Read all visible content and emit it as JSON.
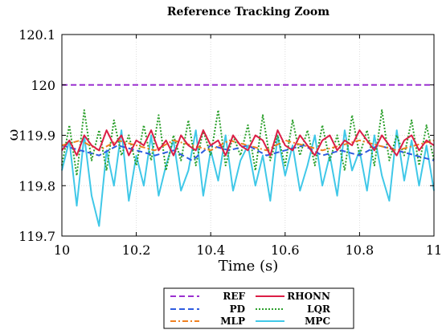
{
  "chart_data": {
    "type": "line",
    "title": "Reference Tracking Zoom",
    "xlabel": "Time (s)",
    "ylabel": "ω",
    "xlim": [
      10,
      11
    ],
    "ylim": [
      119.7,
      120.1
    ],
    "xticks": [
      10,
      10.2,
      10.4,
      10.6,
      10.8,
      11
    ],
    "xtick_labels": [
      "10",
      "10.2",
      "10.4",
      "10.6",
      "10.8",
      "11"
    ],
    "yticks": [
      119.7,
      119.8,
      119.9,
      120,
      120.1
    ],
    "ytick_labels": [
      "119.7",
      "119.8",
      "119.9",
      "120",
      "120.1"
    ],
    "grid": true,
    "legend_position": "below plot",
    "series": [
      {
        "name": "REF",
        "color": "#9b30d0",
        "style": "dashed",
        "x": [
          10,
          11
        ],
        "y": [
          120.0,
          120.0
        ]
      },
      {
        "name": "PD",
        "color": "#2e5ce0",
        "style": "dashed",
        "x": [
          10,
          10.05,
          10.1,
          10.15,
          10.2,
          10.25,
          10.3,
          10.35,
          10.4,
          10.45,
          10.5,
          10.55,
          10.6,
          10.65,
          10.7,
          10.75,
          10.8,
          10.85,
          10.9,
          10.95,
          11
        ],
        "y": [
          119.88,
          119.87,
          119.86,
          119.88,
          119.87,
          119.86,
          119.87,
          119.85,
          119.88,
          119.87,
          119.88,
          119.86,
          119.87,
          119.88,
          119.86,
          119.87,
          119.86,
          119.88,
          119.87,
          119.86,
          119.85
        ]
      },
      {
        "name": "MLP",
        "color": "#f08020",
        "style": "dashdot",
        "x": [
          10,
          10.05,
          10.1,
          10.15,
          10.2,
          10.25,
          10.3,
          10.35,
          10.4,
          10.45,
          10.5,
          10.55,
          10.6,
          10.65,
          10.7,
          10.75,
          10.8,
          10.85,
          10.9,
          10.95,
          11
        ],
        "y": [
          119.88,
          119.89,
          119.87,
          119.89,
          119.88,
          119.87,
          119.89,
          119.88,
          119.87,
          119.89,
          119.88,
          119.87,
          119.89,
          119.88,
          119.87,
          119.88,
          119.89,
          119.88,
          119.87,
          119.88,
          119.89
        ]
      },
      {
        "name": "RHONN",
        "color": "#dc1e46",
        "style": "solid",
        "x": [
          10,
          10.02,
          10.04,
          10.06,
          10.08,
          10.1,
          10.12,
          10.14,
          10.16,
          10.18,
          10.2,
          10.22,
          10.24,
          10.26,
          10.28,
          10.3,
          10.32,
          10.34,
          10.36,
          10.38,
          10.4,
          10.42,
          10.44,
          10.46,
          10.48,
          10.5,
          10.52,
          10.54,
          10.56,
          10.58,
          10.6,
          10.62,
          10.64,
          10.66,
          10.68,
          10.7,
          10.72,
          10.74,
          10.76,
          10.78,
          10.8,
          10.82,
          10.84,
          10.86,
          10.88,
          10.9,
          10.92,
          10.94,
          10.96,
          10.98,
          11
        ],
        "y": [
          119.87,
          119.89,
          119.86,
          119.9,
          119.88,
          119.87,
          119.91,
          119.88,
          119.9,
          119.86,
          119.89,
          119.88,
          119.91,
          119.87,
          119.89,
          119.86,
          119.9,
          119.88,
          119.87,
          119.91,
          119.88,
          119.89,
          119.86,
          119.9,
          119.88,
          119.87,
          119.9,
          119.89,
          119.86,
          119.91,
          119.88,
          119.87,
          119.9,
          119.88,
          119.86,
          119.89,
          119.9,
          119.87,
          119.89,
          119.88,
          119.91,
          119.89,
          119.87,
          119.9,
          119.88,
          119.86,
          119.89,
          119.9,
          119.87,
          119.89,
          119.88
        ]
      },
      {
        "name": "LQR",
        "color": "#2ca02c",
        "style": "dotted",
        "x": [
          10,
          10.02,
          10.04,
          10.06,
          10.08,
          10.1,
          10.12,
          10.14,
          10.16,
          10.18,
          10.2,
          10.22,
          10.24,
          10.26,
          10.28,
          10.3,
          10.32,
          10.34,
          10.36,
          10.38,
          10.4,
          10.42,
          10.44,
          10.46,
          10.48,
          10.5,
          10.52,
          10.54,
          10.56,
          10.58,
          10.6,
          10.62,
          10.64,
          10.66,
          10.68,
          10.7,
          10.72,
          10.74,
          10.76,
          10.78,
          10.8,
          10.82,
          10.84,
          10.86,
          10.88,
          10.9,
          10.92,
          10.94,
          10.96,
          10.98,
          11
        ],
        "y": [
          119.84,
          119.92,
          119.82,
          119.95,
          119.85,
          119.91,
          119.83,
          119.93,
          119.86,
          119.9,
          119.84,
          119.92,
          119.85,
          119.94,
          119.83,
          119.9,
          119.85,
          119.93,
          119.84,
          119.91,
          119.86,
          119.95,
          119.84,
          119.9,
          119.86,
          119.92,
          119.83,
          119.94,
          119.85,
          119.9,
          119.84,
          119.93,
          119.86,
          119.91,
          119.84,
          119.92,
          119.85,
          119.9,
          119.83,
          119.94,
          119.86,
          119.91,
          119.84,
          119.95,
          119.85,
          119.9,
          119.86,
          119.93,
          119.84,
          119.92,
          119.85
        ]
      },
      {
        "name": "MPC",
        "color": "#40c8e8",
        "style": "solid",
        "x": [
          10,
          10.02,
          10.04,
          10.06,
          10.08,
          10.1,
          10.12,
          10.14,
          10.16,
          10.18,
          10.2,
          10.22,
          10.24,
          10.26,
          10.28,
          10.3,
          10.32,
          10.34,
          10.36,
          10.38,
          10.4,
          10.42,
          10.44,
          10.46,
          10.48,
          10.5,
          10.52,
          10.54,
          10.56,
          10.58,
          10.6,
          10.62,
          10.64,
          10.66,
          10.68,
          10.7,
          10.72,
          10.74,
          10.76,
          10.78,
          10.8,
          10.82,
          10.84,
          10.86,
          10.88,
          10.9,
          10.92,
          10.94,
          10.96,
          10.98,
          11
        ],
        "y": [
          119.83,
          119.89,
          119.76,
          119.9,
          119.78,
          119.72,
          119.87,
          119.8,
          119.91,
          119.77,
          119.86,
          119.8,
          119.9,
          119.78,
          119.84,
          119.89,
          119.79,
          119.83,
          119.91,
          119.78,
          119.87,
          119.81,
          119.9,
          119.79,
          119.85,
          119.88,
          119.8,
          119.86,
          119.77,
          119.9,
          119.82,
          119.88,
          119.79,
          119.84,
          119.9,
          119.8,
          119.86,
          119.78,
          119.91,
          119.83,
          119.87,
          119.79,
          119.9,
          119.82,
          119.77,
          119.91,
          119.81,
          119.89,
          119.8,
          119.88,
          119.79
        ]
      }
    ]
  }
}
